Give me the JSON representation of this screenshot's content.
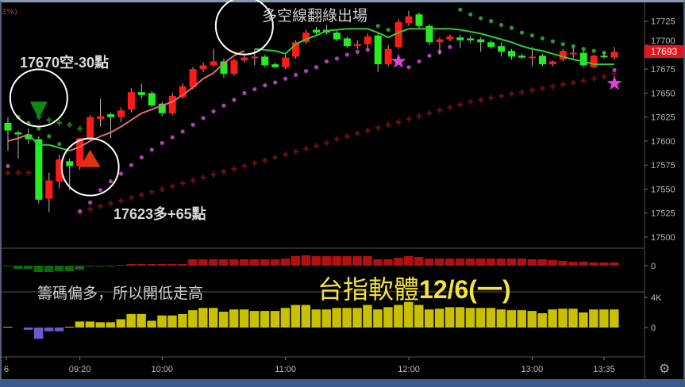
{
  "corner_text": "3%)",
  "annotations": {
    "short_signal": "17670空-30點",
    "long_signal": "17623多+65點",
    "exit_note": "多空線翻綠出場",
    "chip_note": "籌碼偏多，所以開低走高",
    "title_cn": "台指軟體",
    "title_date": "12/6(一)"
  },
  "last_price_badge": "17693",
  "icons": {
    "settings": "gear-icon"
  },
  "colors": {
    "up": "#ff1a1a",
    "down": "#22ee22",
    "long_line": "#e07070",
    "short_line": "#33cc33",
    "sar_dots": "#b040b0",
    "crosses": "#6b1010",
    "star": "#e040e0",
    "volume_pos": "#c8c000",
    "volume_neg": "#6a5acd",
    "badge": "#e8141c"
  },
  "chart_data": {
    "type": "candlestick",
    "ylim": [
      17495,
      17747
    ],
    "price_ticks": [
      "17725",
      "17700",
      "17675",
      "17650",
      "17625",
      "17600",
      "17575",
      "17550",
      "17525",
      "17500"
    ],
    "x_ticks": [
      {
        "label": "6",
        "t": "08:45"
      },
      {
        "label": "09:20",
        "t": "09:20"
      },
      {
        "label": "10:00",
        "t": "10:00"
      },
      {
        "label": "11:00",
        "t": "11:00"
      },
      {
        "label": "12:00",
        "t": "12:00"
      },
      {
        "label": "13:00",
        "t": "13:00"
      },
      {
        "label": "13:35",
        "t": "13:35"
      }
    ],
    "times": [
      "08:45",
      "08:50",
      "08:55",
      "09:00",
      "09:05",
      "09:10",
      "09:15",
      "09:20",
      "09:25",
      "09:30",
      "09:35",
      "09:40",
      "09:45",
      "09:50",
      "09:55",
      "10:00",
      "10:05",
      "10:10",
      "10:15",
      "10:20",
      "10:25",
      "10:30",
      "10:35",
      "10:40",
      "10:45",
      "10:50",
      "10:55",
      "11:00",
      "11:05",
      "11:10",
      "11:15",
      "11:20",
      "11:25",
      "11:30",
      "11:35",
      "11:40",
      "11:45",
      "11:50",
      "11:55",
      "12:00",
      "12:05",
      "12:10",
      "12:15",
      "12:20",
      "12:25",
      "12:30",
      "12:35",
      "12:40",
      "12:45",
      "12:50",
      "12:55",
      "13:00",
      "13:05",
      "13:10",
      "13:15",
      "13:20",
      "13:25",
      "13:30",
      "13:35",
      "13:40"
    ],
    "ohlc": [
      [
        17619,
        17625,
        17590,
        17611
      ],
      [
        17609,
        17611,
        17582,
        17607
      ],
      [
        17607,
        17613,
        17597,
        17602
      ],
      [
        17602,
        17605,
        17535,
        17539
      ],
      [
        17540,
        17567,
        17526,
        17559
      ],
      [
        17558,
        17586,
        17551,
        17581
      ],
      [
        17579,
        17582,
        17549,
        17574
      ],
      [
        17574,
        17603,
        17570,
        17603
      ],
      [
        17603,
        17627,
        17600,
        17625
      ],
      [
        17623,
        17644,
        17615,
        17626
      ],
      [
        17628,
        17630,
        17603,
        17625
      ],
      [
        17625,
        17635,
        17620,
        17632
      ],
      [
        17633,
        17655,
        17630,
        17651
      ],
      [
        17651,
        17660,
        17644,
        17648
      ],
      [
        17650,
        17652,
        17635,
        17637
      ],
      [
        17639,
        17641,
        17626,
        17629
      ],
      [
        17629,
        17650,
        17627,
        17647
      ],
      [
        17646,
        17660,
        17644,
        17657
      ],
      [
        17656,
        17677,
        17654,
        17675
      ],
      [
        17675,
        17682,
        17672,
        17679
      ],
      [
        17679,
        17696,
        17677,
        17683
      ],
      [
        17683,
        17686,
        17666,
        17670
      ],
      [
        17670,
        17686,
        17668,
        17684
      ],
      [
        17684,
        17690,
        17682,
        17687
      ],
      [
        17687,
        17696,
        17679,
        17688
      ],
      [
        17688,
        17690,
        17677,
        17679
      ],
      [
        17680,
        17682,
        17676,
        17677
      ],
      [
        17677,
        17690,
        17675,
        17687
      ],
      [
        17688,
        17705,
        17686,
        17703
      ],
      [
        17703,
        17716,
        17701,
        17713
      ],
      [
        17716,
        17719,
        17711,
        17713
      ],
      [
        17716,
        17721,
        17711,
        17713
      ],
      [
        17713,
        17716,
        17704,
        17706
      ],
      [
        17707,
        17709,
        17697,
        17699
      ],
      [
        17699,
        17705,
        17696,
        17701
      ],
      [
        17701,
        17712,
        17696,
        17709
      ],
      [
        17710,
        17713,
        17672,
        17680
      ],
      [
        17680,
        17700,
        17678,
        17696
      ],
      [
        17698,
        17727,
        17696,
        17724
      ],
      [
        17723,
        17736,
        17720,
        17730
      ],
      [
        17732,
        17734,
        17718,
        17720
      ],
      [
        17720,
        17722,
        17700,
        17703
      ],
      [
        17703,
        17708,
        17690,
        17706
      ],
      [
        17706,
        17711,
        17704,
        17709
      ],
      [
        17708,
        17711,
        17697,
        17705
      ],
      [
        17707,
        17710,
        17702,
        17705
      ],
      [
        17706,
        17708,
        17693,
        17703
      ],
      [
        17703,
        17705,
        17696,
        17698
      ],
      [
        17699,
        17703,
        17688,
        17693
      ],
      [
        17694,
        17696,
        17685,
        17688
      ],
      [
        17689,
        17691,
        17685,
        17687
      ],
      [
        17687,
        17698,
        17678,
        17688
      ],
      [
        17689,
        17691,
        17678,
        17680
      ],
      [
        17680,
        17684,
        17678,
        17683
      ],
      [
        17685,
        17696,
        17683,
        17694
      ],
      [
        17691,
        17698,
        17686,
        17692
      ],
      [
        17692,
        17694,
        17677,
        17679
      ],
      [
        17677,
        17690,
        17676,
        17689
      ],
      [
        17689,
        17693,
        17686,
        17688
      ],
      [
        17687,
        17698,
        17685,
        17693
      ]
    ],
    "trend_line": {
      "values": [
        17600,
        17603,
        17607,
        17596,
        17596,
        17593,
        17590,
        17594,
        17600,
        17605,
        17609,
        17615,
        17622,
        17629,
        17633,
        17637,
        17641,
        17648,
        17656,
        17665,
        17671,
        17681,
        17689,
        17694,
        17696,
        17695,
        17694,
        17691,
        17701,
        17706,
        17710,
        17715,
        17716,
        17717,
        17717,
        17717,
        17713,
        17708,
        17713,
        17717,
        17717,
        17717,
        17717,
        17717,
        17716,
        17714,
        17712,
        17709,
        17706,
        17703,
        17699,
        17696,
        17694,
        17691,
        17688,
        17685,
        17683,
        17680,
        17680,
        17680
      ],
      "state": [
        "long",
        "long",
        "long",
        "short",
        "short",
        "short",
        "short",
        "long",
        "long",
        "long",
        "long",
        "long",
        "long",
        "long",
        "long",
        "long",
        "long",
        "long",
        "long",
        "long",
        "long",
        "long",
        "long",
        "long",
        "short",
        "short",
        "short",
        "short",
        "short",
        "short",
        "short",
        "short",
        "short",
        "short",
        "short",
        "short",
        "short",
        "short",
        "short",
        "short",
        "short",
        "short",
        "short",
        "short",
        "short",
        "short",
        "short",
        "short",
        "short",
        "short",
        "short",
        "short",
        "short",
        "short",
        "short",
        "short",
        "short",
        "short",
        "short",
        "short"
      ]
    },
    "sar_dots_below": [
      17574,
      null,
      null,
      null,
      null,
      null,
      null,
      17527,
      17536,
      17549,
      17558,
      17566,
      17575,
      17583,
      17591,
      17598,
      17604,
      17610,
      17617,
      17624,
      17631,
      17637,
      17643,
      17650,
      17654,
      17658,
      17661,
      17665,
      17669,
      17673,
      17677,
      17683,
      17686,
      17690,
      17693,
      17695,
      null,
      null,
      null,
      17677,
      17683,
      17689,
      17693,
      17698,
      null,
      null,
      null,
      null,
      null,
      null,
      null,
      null,
      null,
      null,
      null,
      null,
      null,
      null,
      null,
      17674
    ],
    "green_dots_above": [
      null,
      17625,
      17619,
      17613,
      17605,
      17597,
      null,
      null,
      null,
      null,
      null,
      null,
      null,
      null,
      null,
      null,
      null,
      null,
      null,
      null,
      null,
      null,
      null,
      null,
      null,
      null,
      null,
      null,
      null,
      null,
      null,
      null,
      null,
      null,
      null,
      null,
      17720,
      17716,
      null,
      null,
      null,
      null,
      null,
      null,
      17737,
      17732,
      17728,
      17725,
      17721,
      17718,
      17713,
      17710,
      17707,
      17704,
      17701,
      17699,
      17696,
      17694,
      17692,
      null
    ],
    "green_crosses": [
      null,
      null,
      null,
      17625,
      17622,
      17619,
      17617,
      17613,
      null,
      null,
      null,
      null,
      null,
      null,
      null,
      null,
      null,
      null,
      null,
      null,
      null,
      null,
      null,
      null,
      null,
      null,
      null,
      null,
      null,
      null,
      null,
      null,
      null,
      null,
      null,
      null,
      null,
      null,
      null,
      null,
      null,
      null,
      null,
      null,
      null,
      null,
      null,
      null,
      null,
      null,
      null,
      null,
      null,
      null,
      null,
      null,
      null,
      null,
      null,
      null
    ],
    "red_crosses": [
      17567,
      17567,
      17567,
      null,
      null,
      null,
      null,
      17526,
      17529,
      17532,
      17535,
      17538,
      17541,
      17544,
      17547,
      17550,
      17553,
      17556,
      17559,
      17562,
      17565,
      17568,
      17571,
      17574,
      17577,
      17580,
      17583,
      17586,
      17589,
      17592,
      17595,
      17598,
      17602,
      17605,
      17608,
      17611,
      17614,
      17617,
      17620,
      17623,
      17626,
      17629,
      17632,
      17635,
      17638,
      17641,
      17643,
      17645,
      17647,
      17649,
      17651,
      17653,
      17655,
      17657,
      17659,
      17661,
      17663,
      17665,
      17667,
      17670
    ],
    "signals": [
      {
        "type": "short",
        "t": "09:00",
        "price": 17632
      },
      {
        "type": "long",
        "t": "09:25",
        "price": 17582
      }
    ],
    "stars": [
      {
        "t": "11:55",
        "price": 17683
      },
      {
        "t": "13:40",
        "price": 17660
      }
    ],
    "circles": [
      {
        "t": "09:00",
        "price": 17645
      },
      {
        "t": "09:25",
        "price": 17573
      },
      {
        "t": "10:40",
        "price": 17720
      }
    ],
    "indicator1": {
      "ticks": [
        "0"
      ],
      "values": [
        -0.5,
        -4,
        -4,
        -8,
        -8,
        -7,
        -7,
        -5,
        -1,
        -1,
        -1,
        1,
        2,
        2,
        2,
        2,
        2,
        2,
        8,
        8,
        8,
        8,
        8,
        8,
        8,
        8,
        8,
        9,
        12,
        13,
        12,
        12,
        12,
        12,
        12,
        12,
        8,
        8,
        10,
        12,
        11,
        9,
        9,
        9,
        9,
        9,
        9,
        9,
        9,
        9,
        9,
        8,
        8,
        7,
        6,
        5,
        5,
        4,
        4,
        4
      ]
    },
    "indicator2": {
      "ticks": [
        "4K",
        "0"
      ],
      "values": [
        0.1,
        0,
        -0.3,
        -1.5,
        -0.5,
        -0.5,
        0.1,
        0.8,
        0.8,
        0.7,
        0.7,
        1.1,
        1.8,
        1.8,
        0.9,
        1.6,
        1.6,
        1.8,
        2.3,
        2.6,
        2.6,
        2.1,
        2.4,
        2.4,
        2.2,
        2.2,
        2.2,
        2.6,
        3.0,
        3.0,
        2.4,
        2.4,
        2.6,
        2.6,
        2.6,
        3.0,
        2.4,
        2.7,
        3.0,
        3.4,
        3.0,
        2.4,
        2.5,
        2.7,
        2.7,
        2.6,
        2.6,
        2.6,
        2.4,
        2.3,
        2.3,
        2.2,
        1.9,
        2.4,
        2.5,
        2.5,
        2.0,
        2.4,
        2.4,
        2.4
      ]
    }
  }
}
